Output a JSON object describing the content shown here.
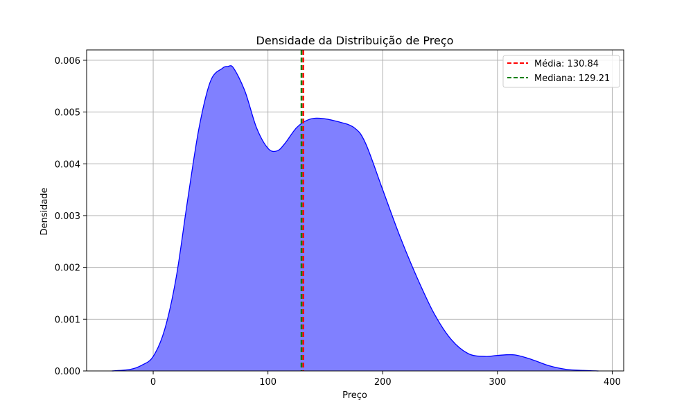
{
  "chart_data": {
    "type": "area",
    "title": "Densidade da Distribuição de Preço",
    "xlabel": "Preço",
    "ylabel": "Densidade",
    "xlim": [
      -58,
      410
    ],
    "ylim": [
      0,
      0.0062
    ],
    "xticks": [
      0,
      100,
      200,
      300,
      400
    ],
    "yticks": [
      0.0,
      0.001,
      0.002,
      0.003,
      0.004,
      0.005,
      0.006
    ],
    "ytick_labels": [
      "0.000",
      "0.001",
      "0.002",
      "0.003",
      "0.004",
      "0.005",
      "0.006"
    ],
    "grid": true,
    "legend_position": "top-right",
    "colors": {
      "fill": "#8080ff",
      "line": "#0000ff",
      "mean": "#ff0000",
      "median": "#008000",
      "grid": "#b0b0b0"
    },
    "series": [
      {
        "x": [
          -36,
          -20,
          -10,
          0,
          10,
          20,
          30,
          40,
          50,
          60,
          65,
          70,
          80,
          90,
          100,
          108,
          115,
          125,
          135,
          145,
          160,
          175,
          185,
          200,
          215,
          230,
          245,
          260,
          275,
          290,
          300,
          315,
          330,
          345,
          360,
          375,
          388
        ],
        "y": [
          0.0,
          3e-05,
          0.00011,
          0.00028,
          0.0008,
          0.0018,
          0.0033,
          0.0047,
          0.0056,
          0.00584,
          0.00588,
          0.00585,
          0.0054,
          0.0047,
          0.0043,
          0.00425,
          0.0044,
          0.0047,
          0.00485,
          0.00488,
          0.00482,
          0.0047,
          0.0044,
          0.0035,
          0.0026,
          0.0018,
          0.0011,
          0.0006,
          0.00033,
          0.00028,
          0.0003,
          0.00031,
          0.00022,
          0.0001,
          3e-05,
          1e-05,
          0.0
        ]
      }
    ],
    "reference_lines": [
      {
        "name": "Média: 130.84",
        "x": 130.84,
        "style": "dashed"
      },
      {
        "name": "Mediana: 129.21",
        "x": 129.21,
        "style": "dashed"
      }
    ]
  }
}
